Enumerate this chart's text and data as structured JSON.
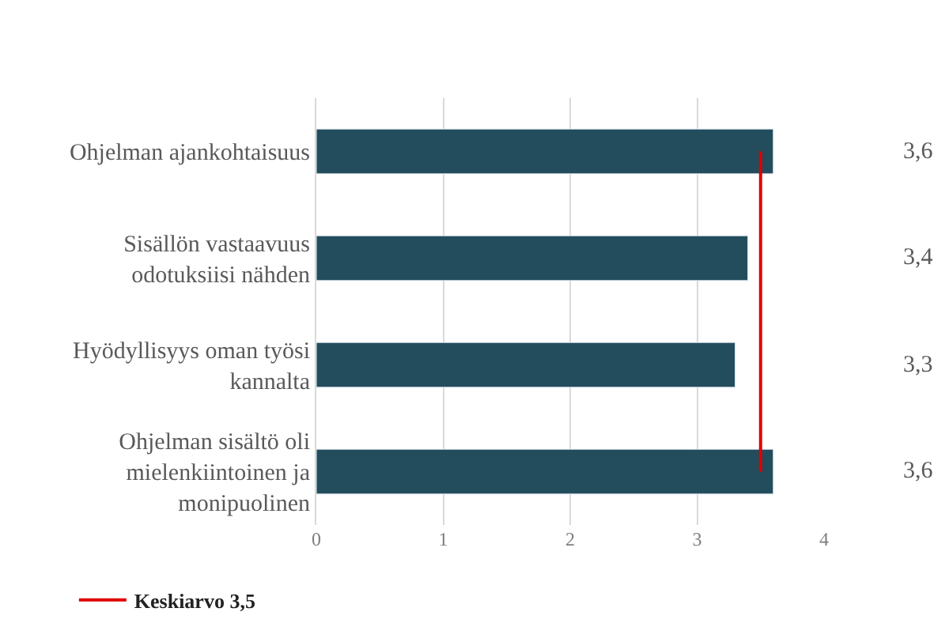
{
  "chart_data": {
    "type": "bar",
    "orientation": "horizontal",
    "categories": [
      "Ohjelman ajankohtaisuus",
      "Sisällön vastaavuus odotuksiisi nähden",
      "Hyödyllisyys oman työsi kannalta",
      "Ohjelman sisältö oli mielenkiintoinen ja monipuolinen"
    ],
    "values": [
      3.6,
      3.4,
      3.3,
      3.6
    ],
    "value_labels": [
      "3,6",
      "3,4",
      "3,3",
      "3,6"
    ],
    "color": "#234d5c",
    "xlim": [
      0,
      4
    ],
    "xticks": [
      0,
      1,
      2,
      3,
      4
    ],
    "grid": "x",
    "ref_lines": [
      {
        "axis": "x",
        "value": 3.5,
        "label": "Keskiarvo 3,5",
        "color": "#e00000"
      }
    ],
    "legend": "bottom left"
  }
}
